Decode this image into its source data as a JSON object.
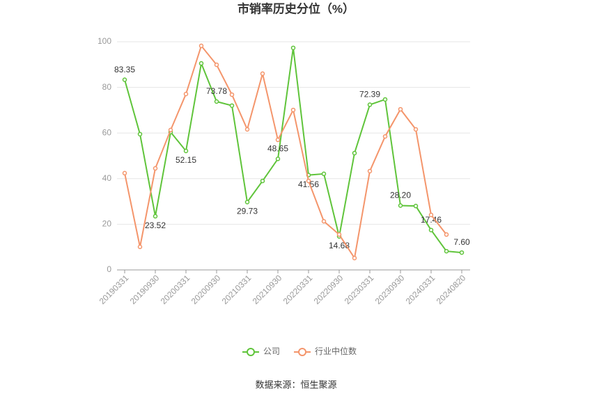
{
  "chart_data": {
    "type": "line",
    "title": "市销率历史分位（%）",
    "categories": [
      "20190331",
      null,
      "20190930",
      null,
      "20200331",
      null,
      "20200930",
      null,
      "20210331",
      null,
      "20210930",
      null,
      "20220331",
      null,
      "20220930",
      null,
      "20230331",
      null,
      "20230930",
      null,
      "20240331",
      null,
      "20240820"
    ],
    "series": [
      {
        "name": "公司",
        "color": "#5fc43a",
        "values": [
          83.35,
          59.5,
          23.52,
          60.4,
          52.15,
          90.5,
          73.78,
          72.0,
          29.73,
          39.0,
          48.65,
          97.3,
          41.56,
          42.1,
          14.68,
          51.2,
          72.39,
          74.7,
          28.2,
          28.0,
          17.46,
          8.2,
          7.6
        ],
        "value_labels": [
          "83.35",
          null,
          "23.52",
          null,
          "52.15",
          null,
          "73.78",
          null,
          "29.73",
          null,
          "48.65",
          null,
          "41.56",
          null,
          "14.68",
          null,
          "72.39",
          null,
          "28.20",
          null,
          "17.46",
          null,
          "7.60"
        ]
      },
      {
        "name": "行业中位数",
        "color": "#f4956b",
        "values": [
          42.4,
          10.1,
          44.5,
          61.3,
          77.1,
          98.2,
          89.9,
          76.8,
          61.6,
          86.0,
          57.0,
          70.1,
          39.0,
          21.3,
          15.5,
          5.2,
          43.3,
          58.5,
          70.4,
          61.6,
          24.1,
          15.5,
          null
        ]
      }
    ],
    "ylim": [
      0,
      100
    ],
    "yticks": [
      0,
      20,
      40,
      60,
      80,
      100
    ],
    "grid": true,
    "legend": "bottom",
    "source": "数据来源：恒生聚源"
  }
}
